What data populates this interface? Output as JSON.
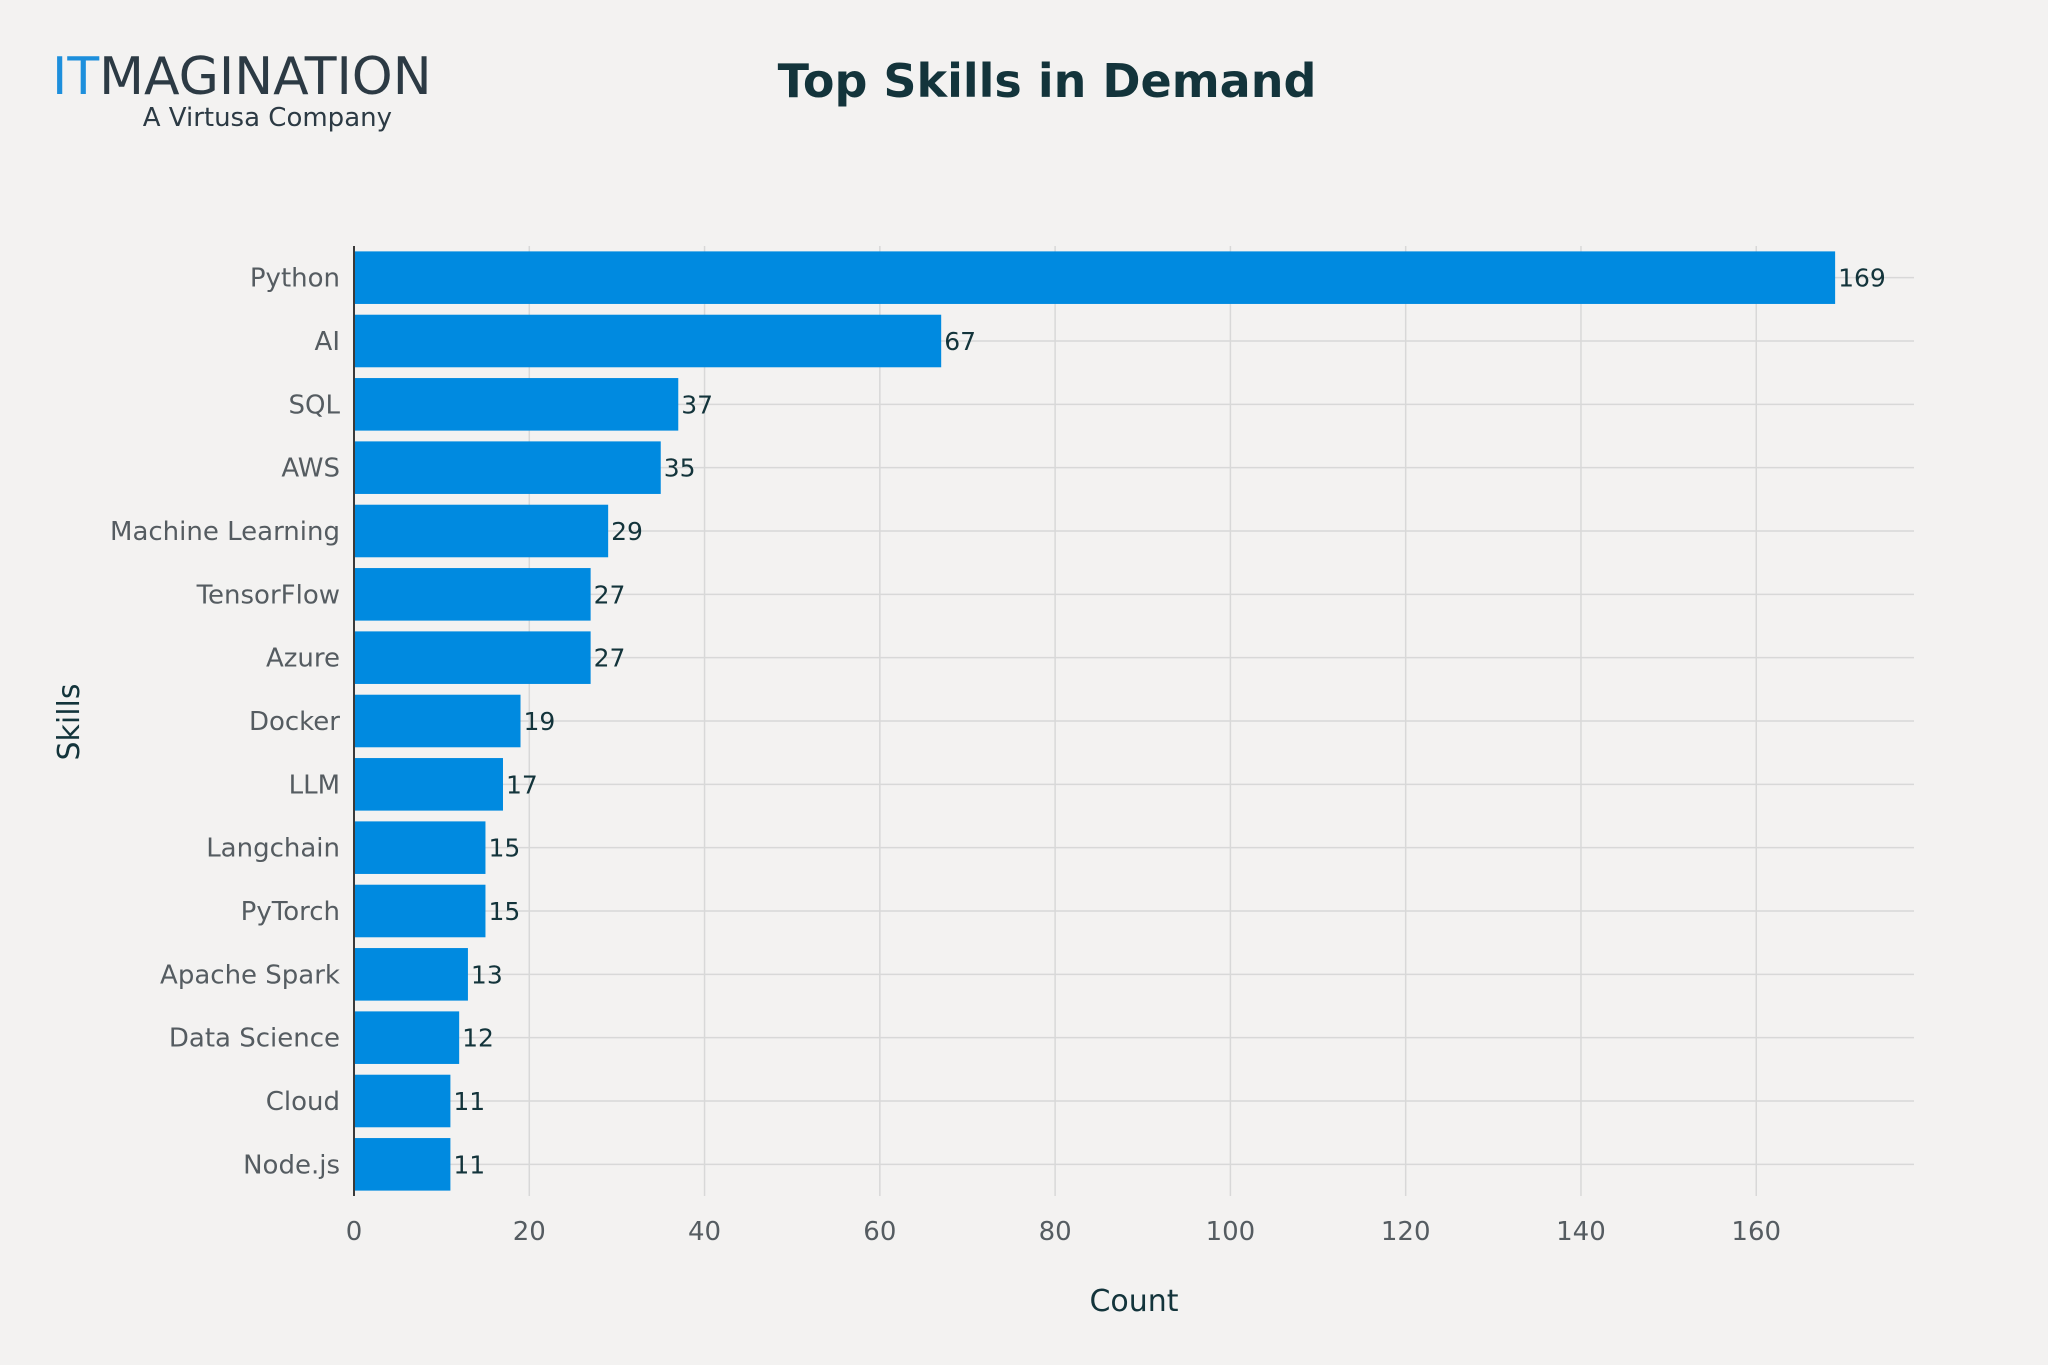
{
  "logo": {
    "wordmark_accent": "IT",
    "wordmark_rest": "MAGINATION",
    "tagline": "A Virtusa Company"
  },
  "colors": {
    "background": "#f3f2f1",
    "bar": "#008ae0",
    "grid": "#d8d8d8",
    "title": "#13343b",
    "logo_accent": "#1d8fdc",
    "logo_dark": "#2c3a44"
  },
  "chart_data": {
    "type": "bar",
    "orientation": "horizontal",
    "title": "Top Skills in Demand",
    "xlabel": "Count",
    "ylabel": "Skills",
    "xlim": [
      0,
      178
    ],
    "xticks": [
      0,
      20,
      40,
      60,
      80,
      100,
      120,
      140,
      160
    ],
    "grid": true,
    "data_labels": true,
    "categories": [
      "Python",
      "AI",
      "SQL",
      "AWS",
      "Machine Learning",
      "TensorFlow",
      "Azure",
      "Docker",
      "LLM",
      "Langchain",
      "PyTorch",
      "Apache Spark",
      "Data Science",
      "Cloud",
      "Node.js"
    ],
    "values": [
      169,
      67,
      37,
      35,
      29,
      27,
      27,
      19,
      17,
      15,
      15,
      13,
      12,
      11,
      11
    ]
  }
}
